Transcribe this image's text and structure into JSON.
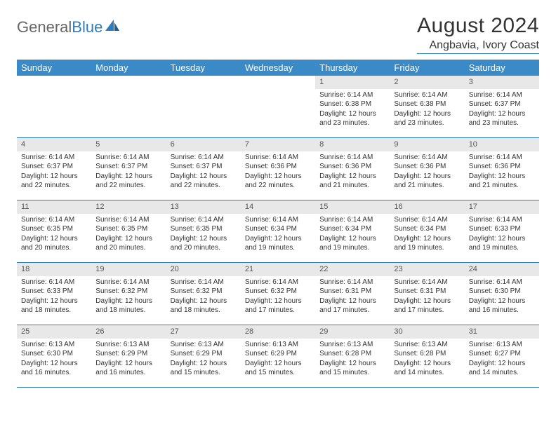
{
  "brand": {
    "part1": "General",
    "part2": "Blue"
  },
  "title": "August 2024",
  "location": "Angbavia, Ivory Coast",
  "colors": {
    "header_bg": "#3a8ac8",
    "header_fg": "#ffffff",
    "rule": "#2d7dc0",
    "daynum_bg": "#e8e8e8",
    "text": "#333333",
    "page_bg": "#ffffff"
  },
  "day_names": [
    "Sunday",
    "Monday",
    "Tuesday",
    "Wednesday",
    "Thursday",
    "Friday",
    "Saturday"
  ],
  "weeks": [
    [
      {
        "n": "",
        "sr": "",
        "ss": "",
        "dl": ""
      },
      {
        "n": "",
        "sr": "",
        "ss": "",
        "dl": ""
      },
      {
        "n": "",
        "sr": "",
        "ss": "",
        "dl": ""
      },
      {
        "n": "",
        "sr": "",
        "ss": "",
        "dl": ""
      },
      {
        "n": "1",
        "sr": "Sunrise: 6:14 AM",
        "ss": "Sunset: 6:38 PM",
        "dl": "Daylight: 12 hours and 23 minutes."
      },
      {
        "n": "2",
        "sr": "Sunrise: 6:14 AM",
        "ss": "Sunset: 6:38 PM",
        "dl": "Daylight: 12 hours and 23 minutes."
      },
      {
        "n": "3",
        "sr": "Sunrise: 6:14 AM",
        "ss": "Sunset: 6:37 PM",
        "dl": "Daylight: 12 hours and 23 minutes."
      }
    ],
    [
      {
        "n": "4",
        "sr": "Sunrise: 6:14 AM",
        "ss": "Sunset: 6:37 PM",
        "dl": "Daylight: 12 hours and 22 minutes."
      },
      {
        "n": "5",
        "sr": "Sunrise: 6:14 AM",
        "ss": "Sunset: 6:37 PM",
        "dl": "Daylight: 12 hours and 22 minutes."
      },
      {
        "n": "6",
        "sr": "Sunrise: 6:14 AM",
        "ss": "Sunset: 6:37 PM",
        "dl": "Daylight: 12 hours and 22 minutes."
      },
      {
        "n": "7",
        "sr": "Sunrise: 6:14 AM",
        "ss": "Sunset: 6:36 PM",
        "dl": "Daylight: 12 hours and 22 minutes."
      },
      {
        "n": "8",
        "sr": "Sunrise: 6:14 AM",
        "ss": "Sunset: 6:36 PM",
        "dl": "Daylight: 12 hours and 21 minutes."
      },
      {
        "n": "9",
        "sr": "Sunrise: 6:14 AM",
        "ss": "Sunset: 6:36 PM",
        "dl": "Daylight: 12 hours and 21 minutes."
      },
      {
        "n": "10",
        "sr": "Sunrise: 6:14 AM",
        "ss": "Sunset: 6:36 PM",
        "dl": "Daylight: 12 hours and 21 minutes."
      }
    ],
    [
      {
        "n": "11",
        "sr": "Sunrise: 6:14 AM",
        "ss": "Sunset: 6:35 PM",
        "dl": "Daylight: 12 hours and 20 minutes."
      },
      {
        "n": "12",
        "sr": "Sunrise: 6:14 AM",
        "ss": "Sunset: 6:35 PM",
        "dl": "Daylight: 12 hours and 20 minutes."
      },
      {
        "n": "13",
        "sr": "Sunrise: 6:14 AM",
        "ss": "Sunset: 6:35 PM",
        "dl": "Daylight: 12 hours and 20 minutes."
      },
      {
        "n": "14",
        "sr": "Sunrise: 6:14 AM",
        "ss": "Sunset: 6:34 PM",
        "dl": "Daylight: 12 hours and 19 minutes."
      },
      {
        "n": "15",
        "sr": "Sunrise: 6:14 AM",
        "ss": "Sunset: 6:34 PM",
        "dl": "Daylight: 12 hours and 19 minutes."
      },
      {
        "n": "16",
        "sr": "Sunrise: 6:14 AM",
        "ss": "Sunset: 6:34 PM",
        "dl": "Daylight: 12 hours and 19 minutes."
      },
      {
        "n": "17",
        "sr": "Sunrise: 6:14 AM",
        "ss": "Sunset: 6:33 PM",
        "dl": "Daylight: 12 hours and 19 minutes."
      }
    ],
    [
      {
        "n": "18",
        "sr": "Sunrise: 6:14 AM",
        "ss": "Sunset: 6:33 PM",
        "dl": "Daylight: 12 hours and 18 minutes."
      },
      {
        "n": "19",
        "sr": "Sunrise: 6:14 AM",
        "ss": "Sunset: 6:32 PM",
        "dl": "Daylight: 12 hours and 18 minutes."
      },
      {
        "n": "20",
        "sr": "Sunrise: 6:14 AM",
        "ss": "Sunset: 6:32 PM",
        "dl": "Daylight: 12 hours and 18 minutes."
      },
      {
        "n": "21",
        "sr": "Sunrise: 6:14 AM",
        "ss": "Sunset: 6:32 PM",
        "dl": "Daylight: 12 hours and 17 minutes."
      },
      {
        "n": "22",
        "sr": "Sunrise: 6:14 AM",
        "ss": "Sunset: 6:31 PM",
        "dl": "Daylight: 12 hours and 17 minutes."
      },
      {
        "n": "23",
        "sr": "Sunrise: 6:14 AM",
        "ss": "Sunset: 6:31 PM",
        "dl": "Daylight: 12 hours and 17 minutes."
      },
      {
        "n": "24",
        "sr": "Sunrise: 6:14 AM",
        "ss": "Sunset: 6:30 PM",
        "dl": "Daylight: 12 hours and 16 minutes."
      }
    ],
    [
      {
        "n": "25",
        "sr": "Sunrise: 6:13 AM",
        "ss": "Sunset: 6:30 PM",
        "dl": "Daylight: 12 hours and 16 minutes."
      },
      {
        "n": "26",
        "sr": "Sunrise: 6:13 AM",
        "ss": "Sunset: 6:29 PM",
        "dl": "Daylight: 12 hours and 16 minutes."
      },
      {
        "n": "27",
        "sr": "Sunrise: 6:13 AM",
        "ss": "Sunset: 6:29 PM",
        "dl": "Daylight: 12 hours and 15 minutes."
      },
      {
        "n": "28",
        "sr": "Sunrise: 6:13 AM",
        "ss": "Sunset: 6:29 PM",
        "dl": "Daylight: 12 hours and 15 minutes."
      },
      {
        "n": "29",
        "sr": "Sunrise: 6:13 AM",
        "ss": "Sunset: 6:28 PM",
        "dl": "Daylight: 12 hours and 15 minutes."
      },
      {
        "n": "30",
        "sr": "Sunrise: 6:13 AM",
        "ss": "Sunset: 6:28 PM",
        "dl": "Daylight: 12 hours and 14 minutes."
      },
      {
        "n": "31",
        "sr": "Sunrise: 6:13 AM",
        "ss": "Sunset: 6:27 PM",
        "dl": "Daylight: 12 hours and 14 minutes."
      }
    ]
  ]
}
